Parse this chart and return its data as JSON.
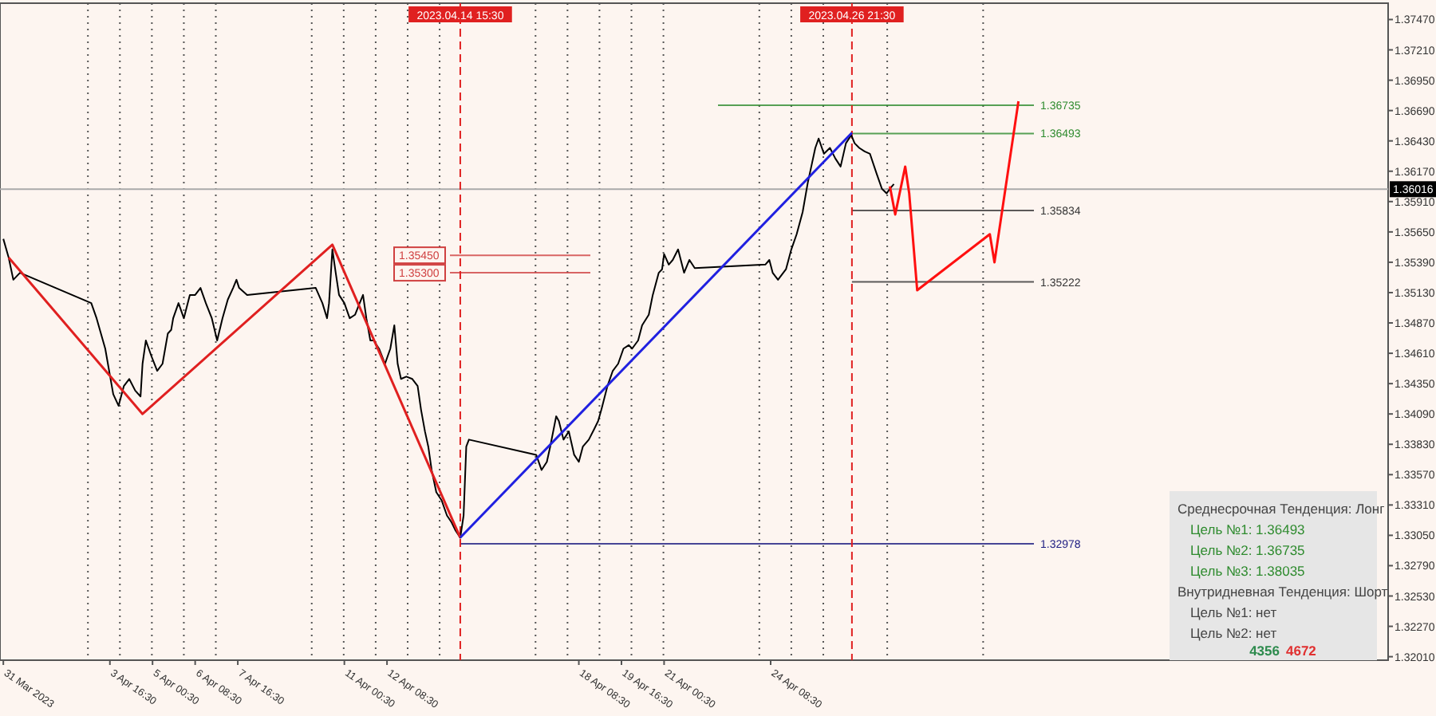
{
  "chart_data": {
    "type": "line",
    "xlim": [
      "2023-03-31T06:00",
      "2023-05-13T16:00"
    ],
    "ylim": [
      1.3198,
      1.3761
    ],
    "xticks": [
      {
        "value": "2023-03-31T08:30",
        "label": "31 Mar 2023"
      },
      {
        "value": "2023-04-03T16:30",
        "label": "3 Apr 16:30"
      },
      {
        "value": "2023-04-05T00:30",
        "label": "5 Apr 00:30"
      },
      {
        "value": "2023-04-06T08:30",
        "label": "6 Apr 08:30"
      },
      {
        "value": "2023-04-07T16:30",
        "label": "7 Apr 16:30"
      },
      {
        "value": "2023-04-11T00:30",
        "label": "11 Apr 00:30"
      },
      {
        "value": "2023-04-12T08:30",
        "label": "12 Apr 08:30"
      },
      {
        "value": "2023-04-18T08:30",
        "label": "18 Apr 08:30"
      },
      {
        "value": "2023-04-19T16:30",
        "label": "19 Apr 16:30"
      },
      {
        "value": "2023-04-21T00:30",
        "label": "21 Apr 00:30"
      },
      {
        "value": "2023-04-24T08:30",
        "label": "24 Apr 08:30"
      },
      {
        "value": "2023-04-03",
        "label": null
      },
      {
        "value": "2023-04-04",
        "label": null
      },
      {
        "value": "2023-04-05",
        "label": null
      },
      {
        "value": "2023-04-06",
        "label": null
      },
      {
        "value": "2023-04-07",
        "label": null
      },
      {
        "value": "2023-04-10",
        "label": null
      },
      {
        "value": "2023-04-11",
        "label": null
      },
      {
        "value": "2023-04-12",
        "label": null
      },
      {
        "value": "2023-04-13",
        "label": null
      },
      {
        "value": "2023-04-14",
        "label": null
      },
      {
        "value": "2023-04-17",
        "label": null
      },
      {
        "value": "2023-04-18",
        "label": null
      },
      {
        "value": "2023-04-19",
        "label": null
      },
      {
        "value": "2023-04-20",
        "label": null
      },
      {
        "value": "2023-04-21",
        "label": null
      },
      {
        "value": "2023-04-24",
        "label": null
      },
      {
        "value": "2023-04-25",
        "label": null
      },
      {
        "value": "2023-04-26",
        "label": null
      },
      {
        "value": "2023-04-28",
        "label": null
      },
      {
        "value": "2023-05-01",
        "label": null
      }
    ],
    "yticks": [
      {
        "value": 1.3201,
        "label": "1.32010"
      },
      {
        "value": 1.3227,
        "label": "1.32270"
      },
      {
        "value": 1.3253,
        "label": "1.32530"
      },
      {
        "value": 1.3279,
        "label": "1.32790"
      },
      {
        "value": 1.3305,
        "label": "1.33050"
      },
      {
        "value": 1.3331,
        "label": "1.33310"
      },
      {
        "value": 1.3357,
        "label": "1.33570"
      },
      {
        "value": 1.3383,
        "label": "1.33830"
      },
      {
        "value": 1.3409,
        "label": "1.34090"
      },
      {
        "value": 1.3435,
        "label": "1.34350"
      },
      {
        "value": 1.3461,
        "label": "1.34610"
      },
      {
        "value": 1.3487,
        "label": "1.34870"
      },
      {
        "value": 1.3513,
        "label": "1.35130"
      },
      {
        "value": 1.3539,
        "label": "1.35390"
      },
      {
        "value": 1.3565,
        "label": "1.35650"
      },
      {
        "value": 1.3591,
        "label": "1.35910"
      },
      {
        "value": 1.3617,
        "label": "1.36170"
      },
      {
        "value": 1.3643,
        "label": "1.36430"
      },
      {
        "value": 1.3669,
        "label": "1.36690"
      },
      {
        "value": 1.3695,
        "label": "1.36950"
      },
      {
        "value": 1.3721,
        "label": "1.37210"
      },
      {
        "value": 1.3747,
        "label": "1.37470"
      }
    ],
    "grid": "x",
    "marker": "none",
    "series": [
      {
        "color": "#000000",
        "x": [
          "2023-03-31T08:30",
          "2023-03-31T12:30",
          "2023-03-31T16:00",
          "2023-03-31T21:00",
          "2023-04-03T02:30",
          "2023-04-03T06:30",
          "2023-04-03T13:00",
          "2023-04-03T19:00",
          "2023-04-03T23:00",
          "2023-04-04T03:00",
          "2023-04-04T07:00",
          "2023-04-04T11:30",
          "2023-04-04T15:30",
          "2023-04-04T17:00",
          "2023-04-04T19:30",
          "2023-04-04T23:30",
          "2023-04-05T04:00",
          "2023-04-05T08:00",
          "2023-04-05T12:00",
          "2023-04-05T14:30",
          "2023-04-05T16:00",
          "2023-04-05T20:00",
          "2023-04-06T00:00",
          "2023-04-06T04:30",
          "2023-04-06T08:30",
          "2023-04-06T12:30",
          "2023-04-06T16:30",
          "2023-04-06T21:00",
          "2023-04-07T01:00",
          "2023-04-07T05:00",
          "2023-04-07T09:00",
          "2023-04-07T13:00",
          "2023-04-07T15:30",
          "2023-04-07T17:30",
          "2023-04-07T21:30",
          "2023-04-07T23:30",
          "2023-04-10T03:00",
          "2023-04-10T08:00",
          "2023-04-10T11:30",
          "2023-04-10T13:00",
          "2023-04-10T15:30",
          "2023-04-10T18:00",
          "2023-04-10T20:30",
          "2023-04-11T00:30",
          "2023-04-11T04:30",
          "2023-04-11T08:30",
          "2023-04-11T12:00",
          "2023-04-11T14:30",
          "2023-04-11T17:00",
          "2023-04-11T20:00",
          "2023-04-11T22:30",
          "2023-04-12T02:30",
          "2023-04-12T07:00",
          "2023-04-12T11:00",
          "2023-04-12T14:00",
          "2023-04-12T16:30",
          "2023-04-12T19:00",
          "2023-04-12T23:00",
          "2023-04-13T03:30",
          "2023-04-13T07:30",
          "2023-04-13T10:00",
          "2023-04-13T13:00",
          "2023-04-13T15:30",
          "2023-04-13T18:00",
          "2023-04-13T21:30",
          "2023-04-14T01:30",
          "2023-04-14T05:30",
          "2023-04-14T09:00",
          "2023-04-14T12:00",
          "2023-04-14T15:30",
          "2023-04-14T18:00",
          "2023-04-14T20:00",
          "2023-04-14T22:00",
          "2023-04-17T00:30",
          "2023-04-17T04:30",
          "2023-04-17T08:30",
          "2023-04-17T11:00",
          "2023-04-17T15:30",
          "2023-04-17T17:30",
          "2023-04-17T21:00",
          "2023-04-18T01:00",
          "2023-04-18T05:00",
          "2023-04-18T08:30",
          "2023-04-18T11:30",
          "2023-04-18T16:00",
          "2023-04-18T20:00",
          "2023-04-18T23:00",
          "2023-04-19T01:30",
          "2023-04-19T06:00",
          "2023-04-19T10:00",
          "2023-04-19T14:00",
          "2023-04-19T18:00",
          "2023-04-19T22:00",
          "2023-04-20T00:30",
          "2023-04-20T05:00",
          "2023-04-20T08:00",
          "2023-04-20T13:00",
          "2023-04-20T16:00",
          "2023-04-20T20:30",
          "2023-04-20T23:00",
          "2023-04-21T00:30",
          "2023-04-21T04:00",
          "2023-04-21T07:00",
          "2023-04-21T11:00",
          "2023-04-21T15:30",
          "2023-04-21T19:30",
          "2023-04-21T23:30",
          "2023-04-24T04:30",
          "2023-04-24T07:30",
          "2023-04-24T10:00",
          "2023-04-24T14:00",
          "2023-04-24T20:00",
          "2023-04-25T00:00",
          "2023-04-25T04:00",
          "2023-04-25T08:30",
          "2023-04-25T12:30",
          "2023-04-25T15:00",
          "2023-04-25T18:00",
          "2023-04-25T20:30",
          "2023-04-26T00:30",
          "2023-04-26T05:00",
          "2023-04-26T09:00",
          "2023-04-26T13:00",
          "2023-04-26T17:00",
          "2023-04-26T21:00",
          "2023-04-26T23:30",
          "2023-04-27T03:00",
          "2023-04-27T07:00",
          "2023-04-27T11:00",
          "2023-04-27T16:00",
          "2023-04-27T20:00",
          "2023-04-27T23:30",
          "2023-04-28T02:00",
          "2023-04-28T05:00"
        ],
        "values": [
          1.3559,
          1.3543,
          1.3524,
          1.353,
          1.3504,
          1.3491,
          1.3465,
          1.3426,
          1.3416,
          1.3433,
          1.3439,
          1.3429,
          1.3424,
          1.3452,
          1.3472,
          1.3459,
          1.3446,
          1.3452,
          1.3478,
          1.3481,
          1.3491,
          1.3504,
          1.3491,
          1.3511,
          1.3511,
          1.3517,
          1.3504,
          1.3491,
          1.3472,
          1.3491,
          1.3507,
          1.3517,
          1.3524,
          1.3517,
          1.3513,
          1.3511,
          1.3517,
          1.3504,
          1.3491,
          1.3504,
          1.355,
          1.353,
          1.3511,
          1.3504,
          1.3491,
          1.3494,
          1.3504,
          1.3511,
          1.3491,
          1.3472,
          1.3472,
          1.3465,
          1.3452,
          1.3465,
          1.3485,
          1.3452,
          1.3439,
          1.3441,
          1.3439,
          1.3433,
          1.3413,
          1.3394,
          1.3381,
          1.3361,
          1.3342,
          1.3335,
          1.3322,
          1.3316,
          1.3309,
          1.3303,
          1.3322,
          1.3381,
          1.3387,
          1.3374,
          1.3361,
          1.3368,
          1.3381,
          1.3407,
          1.3403,
          1.3387,
          1.3394,
          1.3374,
          1.3368,
          1.3381,
          1.3387,
          1.3396,
          1.3403,
          1.3413,
          1.3433,
          1.3446,
          1.3452,
          1.3465,
          1.3468,
          1.3465,
          1.3472,
          1.3485,
          1.3494,
          1.3511,
          1.353,
          1.3533,
          1.3546,
          1.3537,
          1.3541,
          1.355,
          1.353,
          1.3541,
          1.3534,
          1.3537,
          1.3541,
          1.353,
          1.3524,
          1.3533,
          1.355,
          1.3563,
          1.3582,
          1.3608,
          1.3621,
          1.3637,
          1.3645,
          1.3632,
          1.3637,
          1.3628,
          1.3621,
          1.3641,
          1.3648,
          1.3641,
          1.3637,
          1.3634,
          1.3632,
          1.3615,
          1.3602,
          1.3598,
          1.3602,
          1.3606
        ]
      },
      {
        "color": "#e02020",
        "x": [
          "2023-03-31T12:30",
          "2023-04-04T17:00",
          "2023-04-10T15:30",
          "2023-04-14T15:30"
        ],
        "values": [
          1.3543,
          1.3409,
          1.3554,
          1.3303
        ]
      },
      {
        "color": "#2020e0",
        "x": [
          "2023-04-14T15:30",
          "2023-04-26T21:30"
        ],
        "values": [
          1.3303,
          1.365
        ]
      },
      {
        "color": "#ff1010",
        "x": [
          "2023-04-28T02:00",
          "2023-04-28T06:00",
          "2023-04-28T13:30",
          "2023-04-28T16:30",
          "2023-04-28T22:30",
          "2023-05-01T05:00",
          "2023-05-01T08:30",
          "2023-05-02T02:30"
        ],
        "values": [
          1.3604,
          1.358,
          1.3621,
          1.3598,
          1.3515,
          1.3563,
          1.3539,
          1.3677
        ]
      }
    ],
    "ref_lines": [
      {
        "axis": "y",
        "value": 1.36735,
        "label": "1.36735",
        "color": "#2e8b2e"
      },
      {
        "axis": "y",
        "value": 1.36493,
        "label": "1.36493",
        "color": "#2e8b2e"
      },
      {
        "axis": "y",
        "value": 1.35834,
        "label": "1.35834",
        "color": "#333333"
      },
      {
        "axis": "y",
        "value": 1.35222,
        "label": "1.35222",
        "color": "#333333"
      },
      {
        "axis": "y",
        "value": 1.32978,
        "label": "1.32978",
        "color": "#1a1a80"
      },
      {
        "axis": "y",
        "value": 1.3545,
        "label": "1.35450",
        "color": "#d04040"
      },
      {
        "axis": "y",
        "value": 1.353,
        "label": "1.35300",
        "color": "#d04040"
      },
      {
        "axis": "y",
        "value": 1.36016,
        "label": "1.36016",
        "color": "#aaaaaa"
      },
      {
        "axis": "x",
        "value": "2023-04-14T15:30",
        "label": "2023.04.14 15:30",
        "color": "#e02020",
        "line_style": "dashed"
      },
      {
        "axis": "x",
        "value": "2023-04-26T21:30",
        "label": "2023.04.26 21:30",
        "color": "#e02020",
        "line_style": "dashed"
      }
    ],
    "annotations": [
      "Среднесрочная Тенденция: Лонг",
      "Цель №1: 1.36493",
      "Цель №2: 1.36735",
      "Цель №3: 1.38035",
      "Внутридневная Тенденция: Шорт",
      "Цель №1: нет",
      "Цель №2: нет",
      "4356",
      "4672"
    ]
  }
}
